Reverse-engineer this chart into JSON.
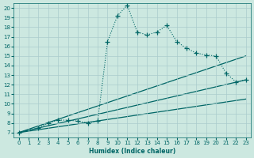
{
  "xlabel": "Humidex (Indice chaleur)",
  "xlim": [
    -0.5,
    23.5
  ],
  "ylim": [
    6.5,
    20.5
  ],
  "xticks": [
    0,
    1,
    2,
    3,
    4,
    5,
    6,
    7,
    8,
    9,
    10,
    11,
    12,
    13,
    14,
    15,
    16,
    17,
    18,
    19,
    20,
    21,
    22,
    23
  ],
  "yticks": [
    7,
    8,
    9,
    10,
    11,
    12,
    13,
    14,
    15,
    16,
    17,
    18,
    19,
    20
  ],
  "bg_color": "#cce8e0",
  "line_color": "#006666",
  "grid_color": "#aacccc",
  "main_x": [
    0,
    2,
    3,
    4,
    5,
    6,
    7,
    8,
    9,
    10,
    11,
    12,
    13,
    14,
    15,
    16,
    17,
    18,
    19,
    20,
    21,
    22,
    23
  ],
  "main_y": [
    7.0,
    7.5,
    8.0,
    8.3,
    8.3,
    8.2,
    8.0,
    8.2,
    16.5,
    19.2,
    20.3,
    17.5,
    17.2,
    17.5,
    18.2,
    16.5,
    15.8,
    15.3,
    15.1,
    15.0,
    13.2,
    12.3,
    12.5
  ],
  "line1_x": [
    0,
    23
  ],
  "line1_y": [
    7.0,
    15.0
  ],
  "line2_x": [
    0,
    23
  ],
  "line2_y": [
    7.0,
    12.5
  ],
  "line3_x": [
    0,
    23
  ],
  "line3_y": [
    7.0,
    10.5
  ]
}
